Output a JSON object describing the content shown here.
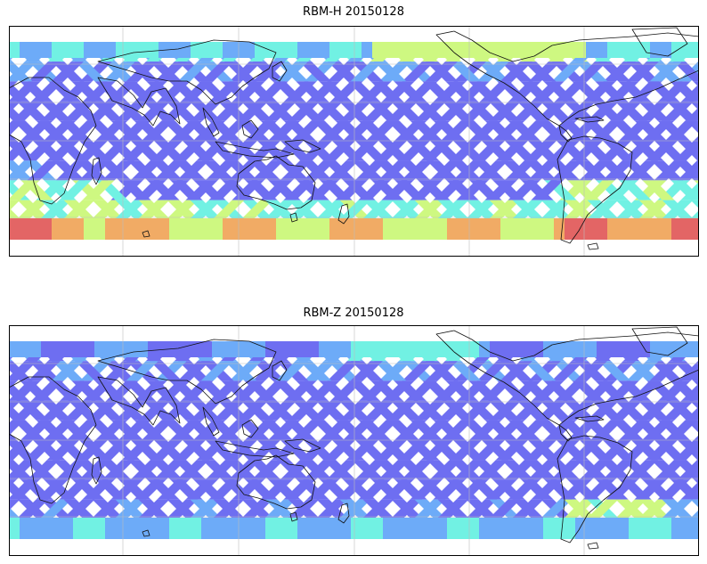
{
  "figure": {
    "panels": [
      {
        "id": "rbm-h",
        "title": "RBM-H 20150128",
        "gridlines": true,
        "coastlines": true,
        "colormap": "jet",
        "high_latitude_intensity": "high",
        "band_colors": {
          "low": "#5b5bf0",
          "mid_low": "#5aa0f8",
          "mid": "#5ef0e0",
          "mid_high": "#c8f870",
          "high": "#f0a050",
          "very_high": "#e05050"
        }
      },
      {
        "id": "rbm-z",
        "title": "RBM-Z 20150128",
        "gridlines": true,
        "coastlines": true,
        "colormap": "jet",
        "high_latitude_intensity": "moderate",
        "band_colors": {
          "low": "#5b5bf0",
          "mid_low": "#5aa0f8",
          "mid": "#5ef0e0",
          "mid_high": "#c8f870"
        }
      }
    ]
  }
}
